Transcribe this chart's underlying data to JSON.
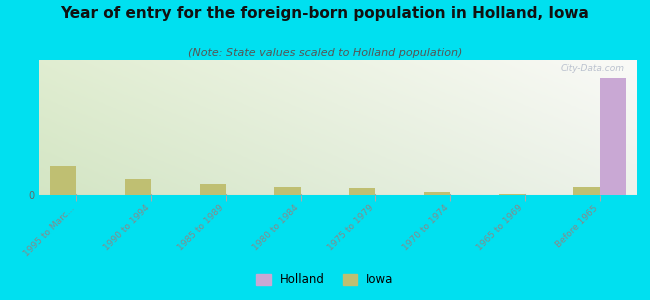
{
  "title": "Year of entry for the foreign-born population in Holland, Iowa",
  "subtitle": "(Note: State values scaled to Holland population)",
  "categories": [
    "1995 to Marc...",
    "1990 to 1994",
    "1985 to 1989",
    "1980 to 1984",
    "1975 to 1979",
    "1970 to 1974",
    "1965 to 1969",
    "Before 1965"
  ],
  "holland_values": [
    0,
    0,
    0,
    0,
    0,
    0,
    0,
    52
  ],
  "iowa_values": [
    13,
    7,
    5,
    3.5,
    3,
    1.5,
    0.5,
    3.5
  ],
  "holland_color": "#c9a8d4",
  "iowa_color": "#bfbf72",
  "background_color": "#00e0f0",
  "ylim": [
    0,
    60
  ],
  "bar_width": 0.35,
  "watermark": "City-Data.com",
  "legend_holland": "Holland",
  "legend_iowa": "Iowa",
  "title_fontsize": 11,
  "subtitle_fontsize": 8
}
